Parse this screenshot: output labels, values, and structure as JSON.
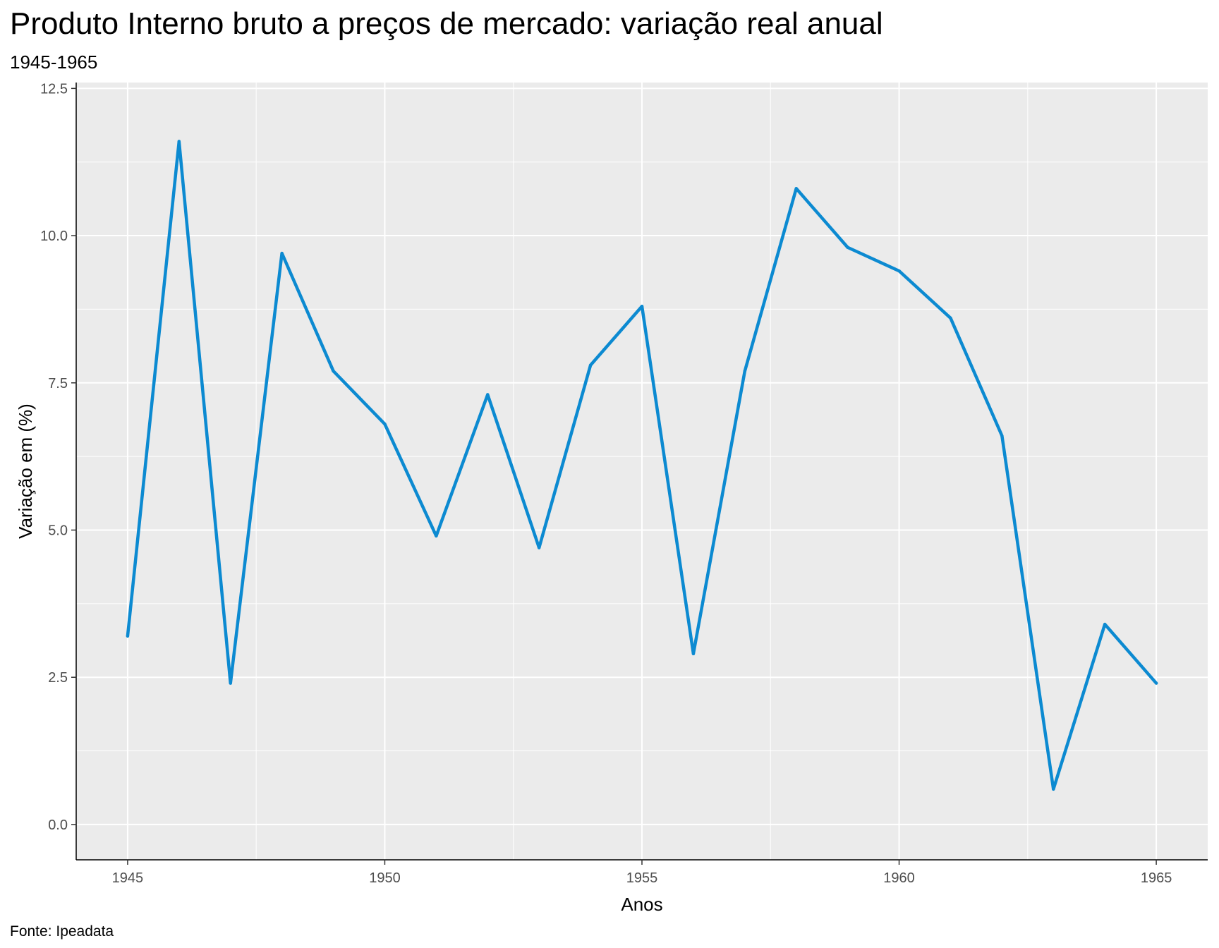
{
  "chart_data": {
    "type": "line",
    "title": "Produto Interno bruto a preços de mercado: variação real anual",
    "subtitle": "1945-1965",
    "caption": "Fonte: Ipeadata",
    "xlabel": "Anos",
    "ylabel": "Variação em (%)",
    "xlim": [
      1944,
      1966
    ],
    "ylim": [
      -0.6,
      12.6
    ],
    "x_ticks": [
      1945,
      1950,
      1955,
      1960,
      1965
    ],
    "x_tick_labels": [
      "1945",
      "1950",
      "1955",
      "1960",
      "1965"
    ],
    "y_ticks": [
      0,
      2.5,
      5,
      7.5,
      10,
      12.5
    ],
    "y_tick_labels": [
      "0.0",
      "2.5",
      "5.0",
      "7.5",
      "10.0",
      "12.5"
    ],
    "grid": true,
    "panel_color": "#ebebeb",
    "line_color": "#0c8ad1",
    "series": [
      {
        "x": [
          1945,
          1946,
          1947,
          1948,
          1949,
          1950,
          1951,
          1952,
          1953,
          1954,
          1955,
          1956,
          1957,
          1958,
          1959,
          1960,
          1961,
          1962,
          1963,
          1964,
          1965
        ],
        "values": [
          3.2,
          11.6,
          2.4,
          9.7,
          7.7,
          6.8,
          4.9,
          7.3,
          4.7,
          7.8,
          8.8,
          2.9,
          7.7,
          10.8,
          9.8,
          9.4,
          8.6,
          6.6,
          0.6,
          3.4,
          2.4
        ]
      }
    ]
  }
}
